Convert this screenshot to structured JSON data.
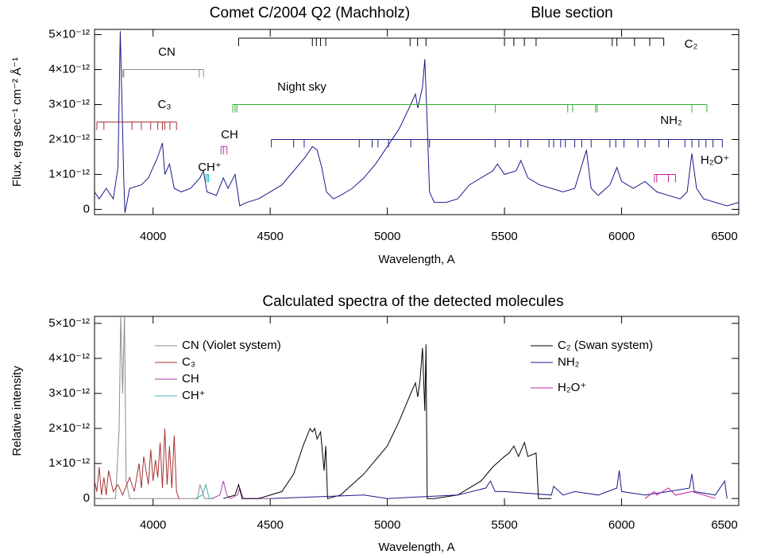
{
  "chart_data": [
    {
      "type": "line",
      "title": "Comet C/2004 Q2 (Machholz)",
      "subtitle": "Blue section",
      "x_label": "Wavelength, A",
      "y_label": "Flux, erg sec⁻¹ cm⁻² Å⁻¹",
      "color": "#1a1a8c",
      "xlim": [
        3750,
        6500
      ],
      "xticks": [
        4000,
        4500,
        5000,
        5500,
        6000,
        6500
      ],
      "ylim": [
        -1.5e-13,
        5.15e-12
      ],
      "yticks": [
        0,
        {
          "value": 1e-12,
          "label": "1×10⁻¹²"
        },
        {
          "value": 2e-12,
          "label": "2×10⁻¹²"
        },
        {
          "value": 3e-12,
          "label": "3×10⁻¹²"
        },
        {
          "value": 4e-12,
          "label": "4×10⁻¹²"
        },
        {
          "value": 5e-12,
          "label": "5×10⁻¹²"
        }
      ],
      "x": [
        3750,
        3770,
        3800,
        3830,
        3850,
        3860,
        3875,
        3880,
        3900,
        3950,
        3980,
        4000,
        4020,
        4040,
        4050,
        4070,
        4090,
        4120,
        4160,
        4200,
        4215,
        4230,
        4270,
        4300,
        4320,
        4350,
        4370,
        4400,
        4450,
        4500,
        4550,
        4600,
        4650,
        4680,
        4700,
        4720,
        4740,
        4770,
        4800,
        4850,
        4900,
        4950,
        5000,
        5050,
        5100,
        5120,
        5130,
        5150,
        5160,
        5170,
        5180,
        5200,
        5250,
        5300,
        5350,
        5400,
        5450,
        5470,
        5500,
        5550,
        5570,
        5600,
        5650,
        5700,
        5750,
        5800,
        5850,
        5870,
        5900,
        5950,
        5980,
        6000,
        6050,
        6100,
        6150,
        6200,
        6250,
        6280,
        6300,
        6320,
        6350,
        6400,
        6450,
        6500
      ],
      "values": [
        5e-13,
        3e-13,
        6e-13,
        3e-13,
        1.2e-12,
        5.1e-12,
        8e-13,
        -1e-13,
        6e-13,
        7e-13,
        9e-13,
        1.2e-12,
        1.5e-12,
        1.9e-12,
        1e-12,
        1.3e-12,
        6e-13,
        5e-13,
        6e-13,
        9e-13,
        1.1e-12,
        5e-13,
        4e-13,
        9e-13,
        6e-13,
        1e-12,
        1e-13,
        2e-13,
        3e-13,
        5e-13,
        7e-13,
        1.1e-12,
        1.5e-12,
        1.8e-12,
        1.7e-12,
        1.2e-12,
        5e-13,
        3e-13,
        4e-13,
        6e-13,
        9e-13,
        1.3e-12,
        1.8e-12,
        2.3e-12,
        3e-12,
        3.3e-12,
        2.9e-12,
        3.5e-12,
        4.3e-12,
        2.5e-12,
        5e-13,
        2e-13,
        2e-13,
        3e-13,
        7e-13,
        9e-13,
        1.1e-12,
        1.3e-12,
        1e-12,
        1.1e-12,
        1.4e-12,
        9e-13,
        7e-13,
        6e-13,
        5e-13,
        6e-13,
        1.7e-12,
        6e-13,
        4e-13,
        7e-13,
        1.2e-12,
        8e-13,
        6e-13,
        8e-13,
        5e-13,
        4e-13,
        3e-13,
        5e-13,
        1.6e-12,
        6e-13,
        3e-13,
        2e-13,
        1e-13,
        2e-13
      ],
      "line_lists": [
        {
          "name": "CN",
          "color": "#8c8c8c",
          "level": 4e-12,
          "lines": [
            3871,
            3875,
            4197,
            4215
          ]
        },
        {
          "name": "C₃",
          "color": "#a83232",
          "level": 2.5e-12,
          "lines": [
            3760,
            3790,
            3910,
            3950,
            3990,
            4020,
            4040,
            4050,
            4072,
            4100
          ]
        },
        {
          "name": "CH",
          "color": "#b030b0",
          "level": 1.8e-12,
          "lines": [
            4290,
            4300,
            4315
          ]
        },
        {
          "name": "CH⁺",
          "color": "#20c0c0",
          "level": 1e-12,
          "lines": [
            4225,
            4232,
            4237
          ]
        },
        {
          "name": "Night sky",
          "color": "#30b030",
          "level": 3e-12,
          "lines": [
            4340,
            4350,
            4358,
            5461,
            5770,
            5791,
            5889,
            5896,
            6300,
            6364
          ]
        },
        {
          "name": "C₂",
          "color": "#000000",
          "level": 4.9e-12,
          "lines": [
            4365,
            4680,
            4697,
            4715,
            4737,
            5097,
            5129,
            5165,
            5500,
            5540,
            5585,
            5635,
            5960,
            5980,
            6055,
            6120,
            6180
          ]
        },
        {
          "name": "NH₂",
          "color": "#20208c",
          "level": 2e-12,
          "lines": [
            4505,
            4600,
            4645,
            4880,
            4935,
            4960,
            5005,
            5100,
            5180,
            5460,
            5520,
            5570,
            5600,
            5690,
            5710,
            5740,
            5760,
            5800,
            5830,
            5870,
            5950,
            5975,
            6010,
            6070,
            6100,
            6160,
            6200,
            6270,
            6300,
            6330,
            6360,
            6390,
            6430
          ]
        },
        {
          "name": "H₂O⁺",
          "color": "#c020a0",
          "level": 1e-12,
          "lines": [
            6140,
            6150,
            6200,
            6230
          ]
        }
      ]
    },
    {
      "type": "line",
      "title": "Calculated spectra of the detected molecules",
      "x_label": "Wavelength, A",
      "y_label": "Relative intensity",
      "xlim": [
        3750,
        6500
      ],
      "xticks": [
        4000,
        4500,
        5000,
        5500,
        6000,
        6500
      ],
      "ylim": [
        -2e-13,
        5.2e-12
      ],
      "yticks": [
        0,
        {
          "value": 1e-12,
          "label": "1×10⁻¹²"
        },
        {
          "value": 2e-12,
          "label": "2×10⁻¹²"
        },
        {
          "value": 3e-12,
          "label": "3×10⁻¹²"
        },
        {
          "value": 4e-12,
          "label": "4×10⁻¹²"
        },
        {
          "value": 5e-12,
          "label": "5×10⁻¹²"
        }
      ],
      "series": [
        {
          "name": "CN (Violet system)",
          "color": "#8c8c8c",
          "x": [
            3750,
            3840,
            3855,
            3862,
            3870,
            3878,
            3885,
            3900,
            4190,
            4200,
            4210,
            4220,
            4250
          ],
          "values": [
            0,
            0,
            2e-12,
            5.2e-12,
            3e-12,
            5.2e-12,
            5e-13,
            0,
            0,
            4e-13,
            2e-13,
            0,
            0
          ]
        },
        {
          "name": "C₃",
          "color": "#a83232",
          "x": [
            3750,
            3760,
            3770,
            3780,
            3790,
            3800,
            3810,
            3830,
            3850,
            3870,
            3900,
            3920,
            3940,
            3950,
            3960,
            3980,
            3990,
            4000,
            4010,
            4020,
            4030,
            4040,
            4050,
            4060,
            4070,
            4080,
            4090,
            4100,
            4110
          ],
          "values": [
            5e-13,
            2e-13,
            9e-13,
            1e-13,
            6e-13,
            1e-13,
            8e-13,
            2e-13,
            4e-13,
            1e-13,
            6e-13,
            2e-13,
            1e-12,
            3e-13,
            1.2e-12,
            4e-13,
            1.4e-12,
            5e-13,
            1.1e-12,
            6e-13,
            1.6e-12,
            3e-13,
            2e-12,
            4e-13,
            1.5e-12,
            3e-13,
            1.8e-12,
            2e-13,
            0
          ]
        },
        {
          "name": "CH",
          "color": "#a040a0",
          "x": [
            4250,
            4285,
            4300,
            4315,
            4330,
            4360,
            4370,
            4385,
            4500
          ],
          "values": [
            0,
            1e-13,
            5e-13,
            1e-13,
            0,
            1e-13,
            3e-13,
            0,
            0
          ]
        },
        {
          "name": "CH⁺",
          "color": "#40b0b0",
          "x": [
            4180,
            4210,
            4225,
            4232,
            4240,
            4260
          ],
          "values": [
            0,
            1e-13,
            4e-13,
            2e-13,
            0,
            0
          ]
        },
        {
          "name": "C₂ (Swan system)",
          "color": "#000000",
          "x": [
            4300,
            4350,
            4365,
            4380,
            4450,
            4550,
            4600,
            4640,
            4670,
            4680,
            4690,
            4700,
            4715,
            4730,
            4737,
            4745,
            4800,
            4900,
            5000,
            5050,
            5100,
            5120,
            5130,
            5140,
            5150,
            5160,
            5165,
            5170,
            5200,
            5300,
            5400,
            5450,
            5500,
            5520,
            5540,
            5560,
            5585,
            5600,
            5635,
            5645,
            5700
          ],
          "values": [
            0,
            1e-13,
            4e-13,
            0,
            0,
            2e-13,
            7e-13,
            1.5e-12,
            2e-12,
            1.9e-12,
            2e-12,
            1.7e-12,
            1.9e-12,
            8e-13,
            1.5e-12,
            0,
            1e-13,
            7e-13,
            1.5e-12,
            2.2e-12,
            3e-12,
            3.3e-12,
            2.9e-12,
            3.4e-12,
            4.3e-12,
            2.5e-12,
            4.4e-12,
            0,
            0,
            1e-13,
            5e-13,
            9e-13,
            1.2e-12,
            1.3e-12,
            1.5e-12,
            1.2e-12,
            1.6e-12,
            1.2e-12,
            1.3e-12,
            0,
            0
          ]
        },
        {
          "name": "NH₂",
          "color": "#1a1a8c",
          "x": [
            4500,
            4700,
            4900,
            5000,
            5300,
            5420,
            5440,
            5460,
            5500,
            5700,
            5710,
            5750,
            5800,
            5900,
            5980,
            5990,
            6000,
            6100,
            6200,
            6290,
            6300,
            6310,
            6400,
            6440,
            6450
          ],
          "values": [
            0,
            5e-14,
            1e-13,
            0,
            1e-13,
            3e-13,
            5e-13,
            2e-13,
            2e-13,
            1e-13,
            3.5e-13,
            1e-13,
            2e-13,
            1e-13,
            3e-13,
            8e-13,
            2e-13,
            1e-13,
            2e-13,
            3e-13,
            7e-13,
            2e-13,
            1e-13,
            5e-13,
            0
          ]
        },
        {
          "name": "H₂O⁺",
          "color": "#c020a0",
          "x": [
            6100,
            6140,
            6150,
            6200,
            6230,
            6300,
            6350,
            6400
          ],
          "values": [
            0,
            2e-13,
            1e-13,
            3e-13,
            1e-13,
            2e-13,
            1e-13,
            0
          ]
        }
      ]
    }
  ]
}
